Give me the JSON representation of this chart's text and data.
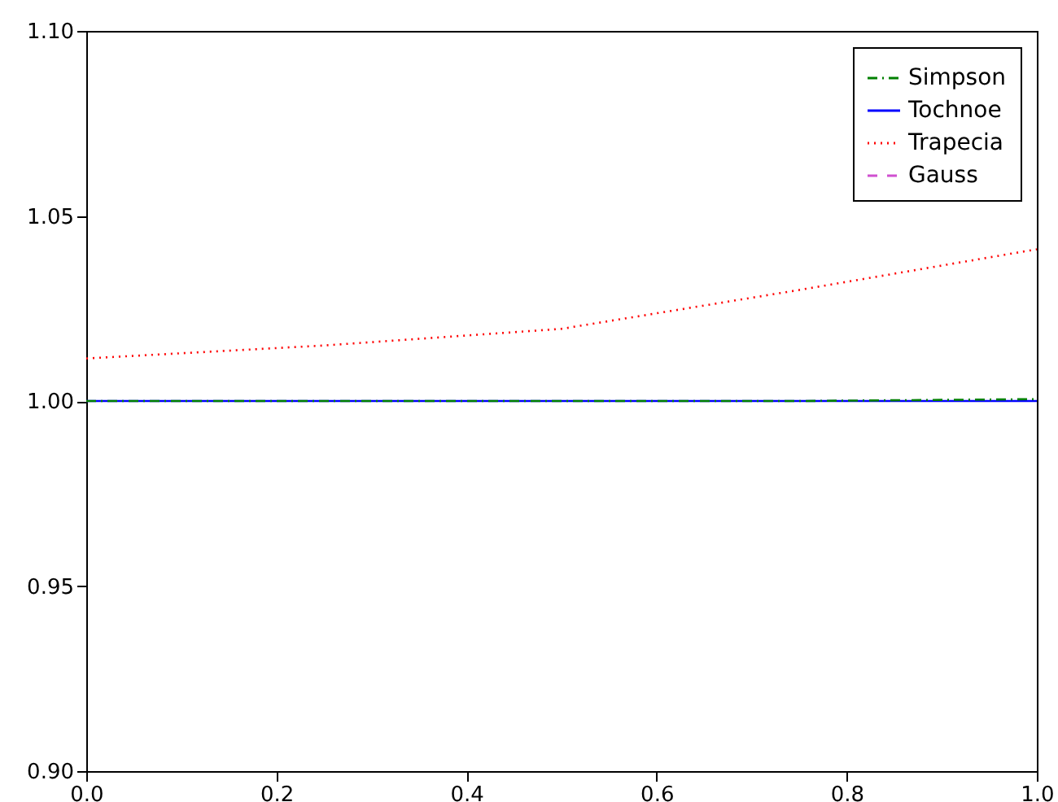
{
  "chart_data": {
    "type": "line",
    "x": [
      0,
      0.25,
      0.5,
      0.75,
      1.0
    ],
    "series": [
      {
        "name": "Simpson",
        "color": "#008000",
        "line_style": "dashdot",
        "values": [
          1.0,
          1.0,
          1.0,
          1.0,
          1.0005
        ]
      },
      {
        "name": "Tochnoe",
        "color": "#0000ff",
        "line_style": "solid",
        "values": [
          1.0,
          1.0,
          1.0,
          1.0,
          1.0
        ]
      },
      {
        "name": "Trapecia",
        "color": "#ff0000",
        "line_style": "dotted",
        "values": [
          1.0115,
          1.015,
          1.0195,
          1.03,
          1.041
        ]
      },
      {
        "name": "Gauss",
        "color": "#d050d0",
        "line_style": "dashed",
        "values": [
          null,
          null,
          null,
          null,
          null
        ]
      }
    ],
    "xlim": [
      0,
      1.0
    ],
    "ylim": [
      0.9,
      1.1
    ],
    "xticks": [
      {
        "value": 0,
        "label": "0.0"
      },
      0.2,
      0.4,
      0.6,
      0.8,
      {
        "value": 1.0,
        "label": "1.0"
      }
    ],
    "yticks": [
      {
        "value": 0.9,
        "label": "0.90"
      },
      0.95,
      {
        "value": 1.0,
        "label": "1.00"
      },
      1.05,
      {
        "value": 1.1,
        "label": "1.10"
      }
    ],
    "grid": false,
    "legend": "top right",
    "marker": "none"
  }
}
